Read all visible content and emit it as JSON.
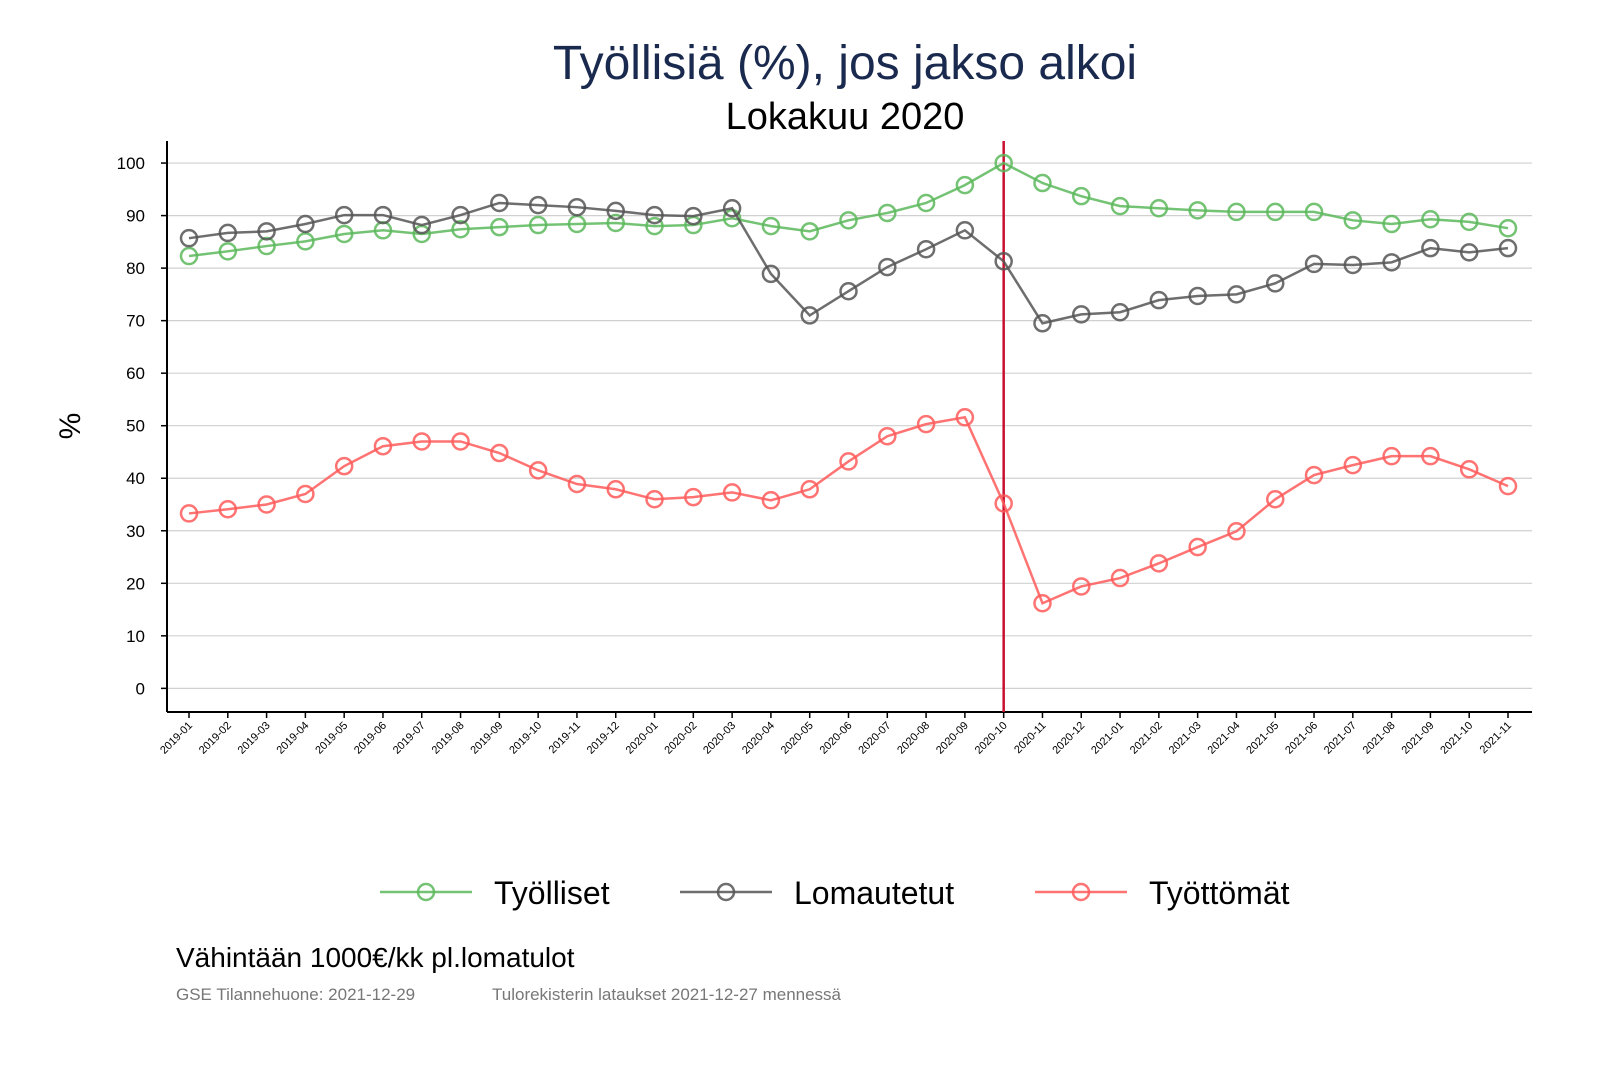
{
  "chart_data": {
    "type": "line",
    "title": "Työllisiä (%), jos jakso alkoi",
    "subtitle": "Lokakuu 2020",
    "xlabel": "",
    "ylabel": "%",
    "ylim": [
      -4.5,
      104.2
    ],
    "yticks": [
      0,
      10,
      20,
      30,
      40,
      50,
      60,
      70,
      80,
      90,
      100
    ],
    "grid": true,
    "legend_position": "bottom",
    "reference_line": {
      "x": "2020-10",
      "color": "#c8102e"
    },
    "x": [
      "2019-01",
      "2019-02",
      "2019-03",
      "2019-04",
      "2019-05",
      "2019-06",
      "2019-07",
      "2019-08",
      "2019-09",
      "2019-10",
      "2019-11",
      "2019-12",
      "2020-01",
      "2020-02",
      "2020-03",
      "2020-04",
      "2020-05",
      "2020-06",
      "2020-07",
      "2020-08",
      "2020-09",
      "2020-10",
      "2020-11",
      "2020-12",
      "2021-01",
      "2021-02",
      "2021-03",
      "2021-04",
      "2021-05",
      "2021-06",
      "2021-07",
      "2021-08",
      "2021-09",
      "2021-10",
      "2021-11"
    ],
    "series": [
      {
        "name": "Työlliset",
        "color": "#5cb85c",
        "values": [
          82.3,
          83.2,
          84.2,
          85.1,
          86.5,
          87.2,
          86.5,
          87.4,
          87.8,
          88.2,
          88.4,
          88.6,
          88.0,
          88.2,
          89.5,
          88.0,
          87.0,
          89.1,
          90.5,
          92.4,
          95.8,
          100.0,
          96.2,
          93.7,
          91.8,
          91.4,
          91.0,
          90.7,
          90.7,
          90.7,
          89.1,
          88.4,
          89.3,
          88.8,
          87.6
        ]
      },
      {
        "name": "Lomautetut",
        "color": "#555555",
        "values": [
          85.7,
          86.7,
          87.0,
          88.4,
          90.1,
          90.1,
          88.2,
          90.1,
          92.4,
          92.0,
          91.6,
          90.9,
          90.1,
          89.9,
          91.4,
          78.9,
          71.0,
          75.6,
          80.2,
          83.6,
          87.2,
          81.3,
          69.5,
          71.2,
          71.6,
          73.9,
          74.7,
          75.0,
          77.1,
          80.8,
          80.6,
          81.1,
          83.8,
          83.0,
          83.8
        ]
      },
      {
        "name": "Työttömät",
        "color": "#ff5a5a",
        "values": [
          33.3,
          34.1,
          35.0,
          37.0,
          42.3,
          46.1,
          47.0,
          47.0,
          44.8,
          41.5,
          38.9,
          37.9,
          36.0,
          36.4,
          37.3,
          35.8,
          37.9,
          43.2,
          48.0,
          50.3,
          51.6,
          35.2,
          16.2,
          19.4,
          21.0,
          23.8,
          26.9,
          29.9,
          36.0,
          40.6,
          42.5,
          44.2,
          44.2,
          41.7,
          38.5
        ]
      }
    ]
  },
  "footer": {
    "note": "Vähintään 1000€/kk pl.lomatulot",
    "source": "GSE Tilannehuone: 2021-12-29",
    "data_note": "Tulorekisterin lataukset 2021-12-27 mennessä"
  }
}
